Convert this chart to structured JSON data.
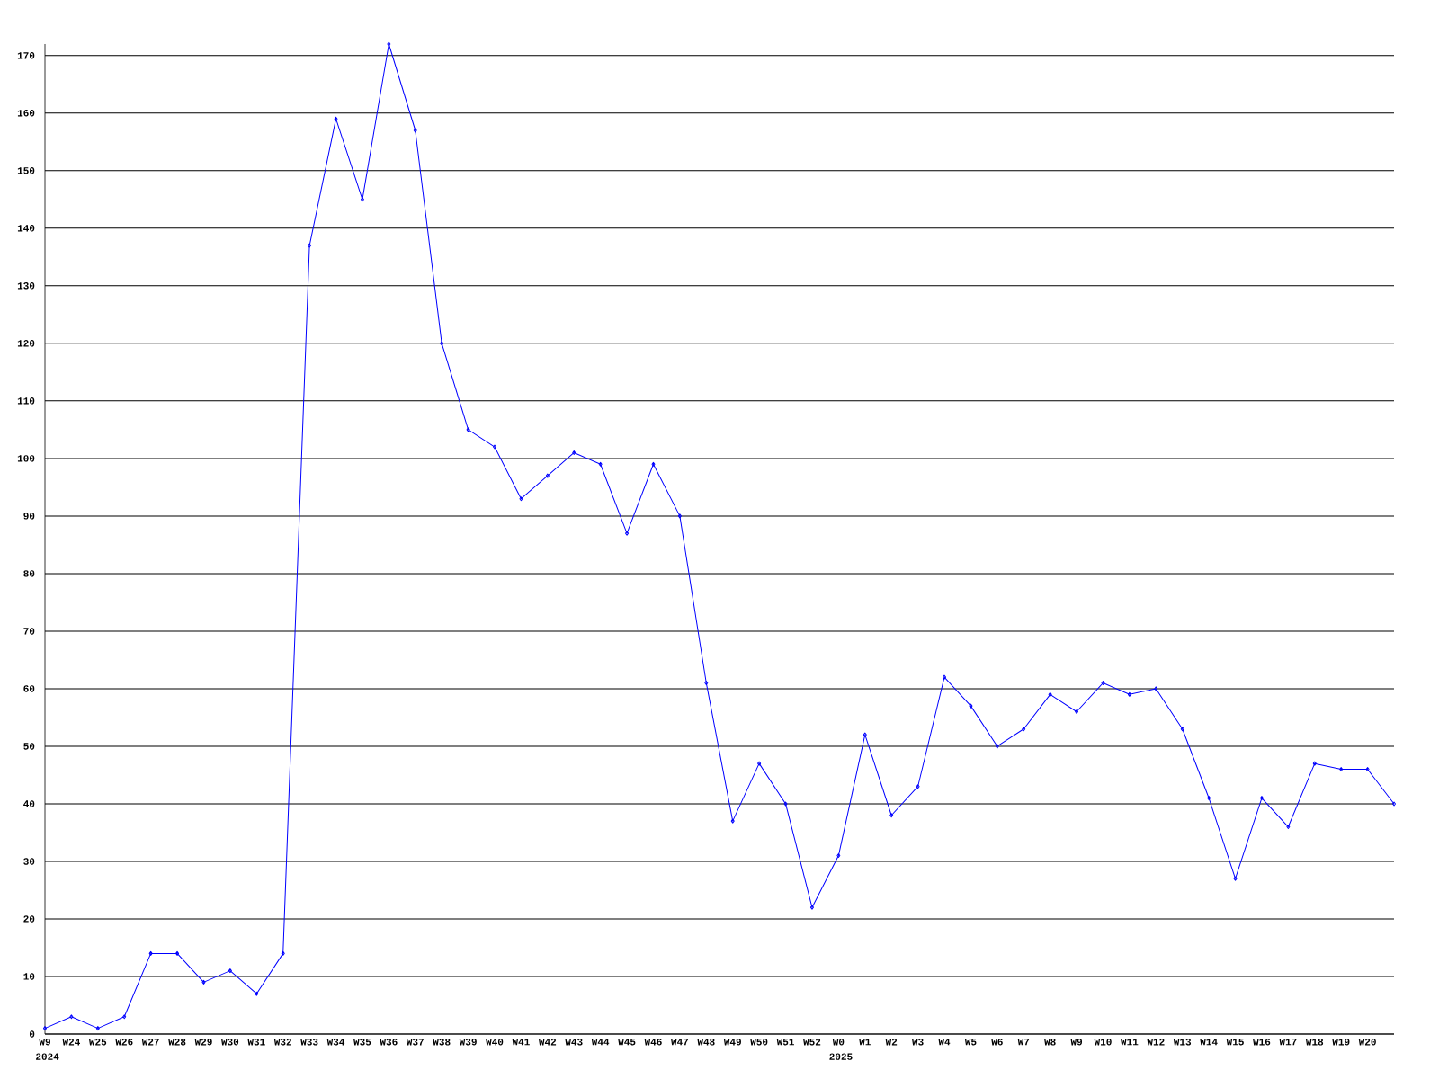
{
  "chart_data": {
    "type": "line",
    "categories": [
      "W9",
      "W24",
      "W25",
      "W26",
      "W27",
      "W28",
      "W29",
      "W30",
      "W31",
      "W32",
      "W33",
      "W34",
      "W35",
      "W36",
      "W37",
      "W38",
      "W39",
      "W40",
      "W41",
      "W42",
      "W43",
      "W44",
      "W45",
      "W46",
      "W47",
      "W48",
      "W49",
      "W50",
      "W51",
      "W52",
      "W0",
      "W1",
      "W2",
      "W3",
      "W4",
      "W5",
      "W6",
      "W7",
      "W8",
      "W9",
      "W10",
      "W11",
      "W12",
      "W13",
      "W14",
      "W15",
      "W16",
      "W17",
      "W18",
      "W19",
      "W20",
      null
    ],
    "series": [
      {
        "color": "#0000ff",
        "values": [
          1,
          3,
          1,
          3,
          14,
          14,
          9,
          11,
          7,
          14,
          137,
          159,
          145,
          172,
          157,
          120,
          105,
          102,
          93,
          97,
          101,
          99,
          87,
          99,
          90,
          61,
          37,
          47,
          40,
          22,
          31,
          52,
          38,
          43,
          62,
          57,
          50,
          53,
          59,
          56,
          61,
          59,
          60,
          53,
          41,
          27,
          41,
          36,
          47,
          46,
          46,
          40
        ]
      }
    ],
    "ylim": [
      0,
      172
    ],
    "yticks": [
      0,
      10,
      20,
      30,
      40,
      50,
      60,
      70,
      80,
      90,
      100,
      110,
      120,
      130,
      140,
      150,
      160,
      170
    ],
    "grid": "y",
    "marker": "diamond",
    "line_style": "solid",
    "annotations": [
      "2024",
      "2025"
    ]
  }
}
